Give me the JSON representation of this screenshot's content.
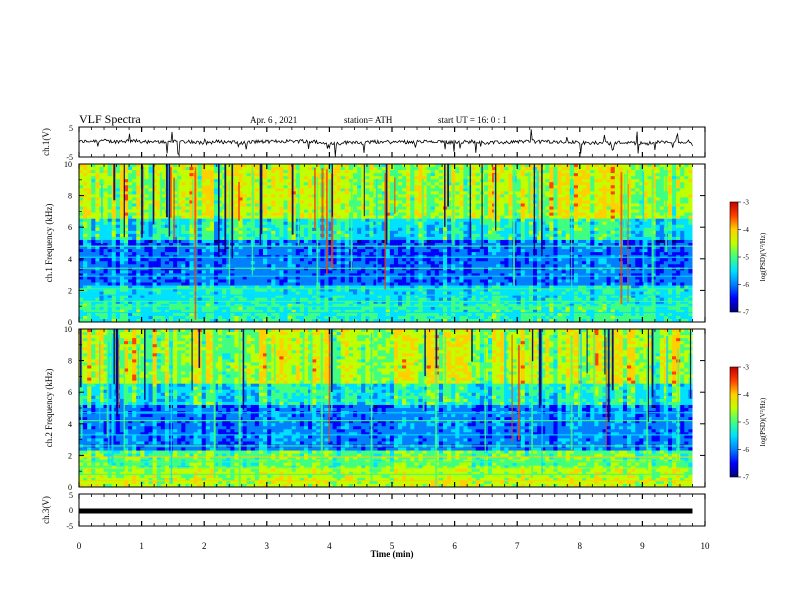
{
  "header": {
    "title": "VLF Spectra",
    "date": "Apr. 6 , 2021",
    "station": "station= ATH",
    "start": "start UT = 16: 0 : 1"
  },
  "chart_data": [
    {
      "type": "line",
      "id": "ch1-voltage",
      "ylabel": "ch.1(V)",
      "ylim": [
        -5,
        5
      ],
      "y_ticks": [
        "5",
        "-5"
      ],
      "xlim": [
        0,
        10
      ],
      "trace": {
        "baseline": 0,
        "amplitude": 1.2,
        "color": "#000000"
      }
    },
    {
      "type": "heatmap",
      "id": "ch1-spectrogram",
      "ylabel": "ch.1 Frequency (kHz)",
      "ylim": [
        0,
        10
      ],
      "y_ticks": [
        "0",
        "2",
        "4",
        "6",
        "8",
        "10"
      ],
      "xlim": [
        0,
        9.8
      ],
      "colorbar": {
        "label": "log(PSD)(V²/Hz)",
        "range": [
          -7,
          -3
        ],
        "ticks": [
          "-3",
          "-4",
          "-5",
          "-6",
          "-7"
        ]
      }
    },
    {
      "type": "heatmap",
      "id": "ch2-spectrogram",
      "ylabel": "ch.2 Frequency (kHz)",
      "ylim": [
        0,
        10
      ],
      "y_ticks": [
        "0",
        "2",
        "4",
        "6",
        "8",
        "10"
      ],
      "xlim": [
        0,
        9.8
      ],
      "colorbar": {
        "label": "log(PSD)(V²/Hz)",
        "range": [
          -7,
          -3
        ],
        "ticks": [
          "-3",
          "-4",
          "-5",
          "-6",
          "-7"
        ]
      }
    },
    {
      "type": "line",
      "id": "ch3-voltage",
      "ylabel": "ch.3(V)",
      "ylim": [
        -5,
        5
      ],
      "y_ticks": [
        "5",
        "0",
        "-5"
      ],
      "xlim": [
        0,
        10
      ],
      "trace": {
        "baseline": 0,
        "amplitude": 0.3,
        "color": "#000000"
      }
    }
  ],
  "xaxis": {
    "label": "Time (min)",
    "ticks": [
      "0",
      "1",
      "2",
      "3",
      "4",
      "5",
      "6",
      "7",
      "8",
      "9",
      "10"
    ],
    "range": [
      0,
      10
    ]
  },
  "colormap": [
    "#00007a",
    "#0000ff",
    "#0080ff",
    "#00e0ff",
    "#40ff80",
    "#c0ff00",
    "#ffd000",
    "#ff4000",
    "#c00000"
  ]
}
